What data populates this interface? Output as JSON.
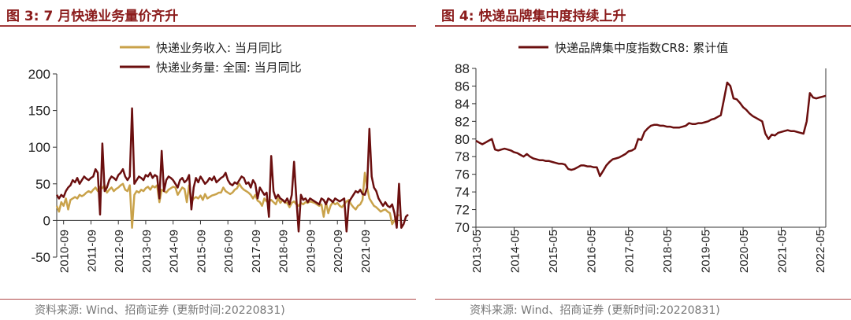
{
  "left": {
    "title": "图 3:  7 月快递业务量价齐升",
    "source": "资料来源: Wind、招商证券 (更新时间:20220831)",
    "chart_data": {
      "type": "line",
      "title": "图 3:  7 月快递业务量价齐升",
      "ylim": [
        -50,
        200
      ],
      "yticks": [
        -50,
        0,
        50,
        100,
        150,
        200
      ],
      "xticks": [
        "2010-09",
        "2011-09",
        "2012-09",
        "2013-09",
        "2014-09",
        "2015-09",
        "2016-09",
        "2017-09",
        "2018-09",
        "2019-09",
        "2020-09",
        "2021-09"
      ],
      "x_start": "2010-06",
      "legend_position": "top-center",
      "series": [
        {
          "name": "快递业务收入: 当月同比",
          "color": "#c9a24a",
          "values": [
            20,
            12,
            25,
            20,
            30,
            15,
            28,
            30,
            32,
            30,
            35,
            33,
            35,
            38,
            40,
            38,
            42,
            45,
            40,
            46,
            44,
            48,
            38,
            42,
            45,
            40,
            43,
            45,
            48,
            50,
            42,
            40,
            48,
            -10,
            35,
            40,
            38,
            42,
            40,
            44,
            46,
            42,
            47,
            45,
            48,
            25,
            42,
            40,
            38,
            42,
            44,
            46,
            45,
            35,
            40,
            45,
            43,
            25,
            48,
            25,
            30,
            32,
            30,
            34,
            28,
            36,
            30,
            32,
            34,
            35,
            36,
            38,
            38,
            45,
            40,
            38,
            36,
            38,
            42,
            44,
            50,
            45,
            42,
            40,
            38,
            35,
            30,
            35,
            27,
            25,
            20,
            30,
            26,
            26,
            28,
            25,
            22,
            30,
            24,
            28,
            24,
            24,
            18,
            24,
            26,
            22,
            20,
            24,
            22,
            25,
            24,
            26,
            25,
            24,
            22,
            20,
            22,
            5,
            25,
            10,
            20,
            25,
            22,
            24,
            20,
            18,
            22,
            26,
            28,
            22,
            18,
            15,
            20,
            22,
            28,
            65,
            45,
            30,
            25,
            20,
            18,
            15,
            12,
            14,
            15,
            12,
            10,
            -5,
            0,
            5,
            8
          ]
        },
        {
          "name": "快递业务量: 全国: 当月同比",
          "color": "#6b0f0f",
          "values": [
            35,
            30,
            35,
            32,
            40,
            45,
            48,
            55,
            52,
            58,
            50,
            55,
            60,
            57,
            55,
            58,
            60,
            70,
            65,
            8,
            105,
            40,
            45,
            55,
            60,
            58,
            55,
            62,
            65,
            70,
            60,
            55,
            60,
            153,
            50,
            55,
            60,
            58,
            55,
            62,
            60,
            65,
            58,
            62,
            60,
            30,
            95,
            40,
            55,
            60,
            58,
            55,
            50,
            45,
            55,
            58,
            52,
            55,
            62,
            15,
            45,
            58,
            52,
            60,
            55,
            50,
            53,
            58,
            55,
            60,
            52,
            55,
            58,
            60,
            65,
            55,
            50,
            48,
            52,
            50,
            55,
            60,
            58,
            50,
            52,
            45,
            55,
            50,
            30,
            45,
            40,
            35,
            38,
            5,
            88,
            40,
            30,
            35,
            30,
            28,
            25,
            30,
            22,
            35,
            80,
            30,
            -15,
            35,
            28,
            30,
            25,
            30,
            28,
            26,
            24,
            22,
            30,
            28,
            22,
            30,
            28,
            25,
            30,
            28,
            26,
            28,
            30,
            -15,
            25,
            30,
            35,
            40,
            38,
            42,
            36,
            35,
            45,
            125,
            60,
            45,
            40,
            30,
            25,
            20,
            25,
            20,
            18,
            22,
            10,
            -10,
            50,
            -10,
            -5,
            5,
            8
          ]
        }
      ]
    }
  },
  "right": {
    "title": "图 4:  快递品牌集中度持续上升",
    "source": "资料来源: Wind、招商证券 (更新时间:20220831)",
    "chart_data": {
      "type": "line",
      "title": "图 4:  快递品牌集中度持续上升",
      "ylim": [
        70,
        88
      ],
      "yticks": [
        70,
        72,
        74,
        76,
        78,
        80,
        82,
        84,
        86,
        88
      ],
      "xticks": [
        "2013-05",
        "2014-05",
        "2015-05",
        "2016-05",
        "2017-05",
        "2018-05",
        "2019-05",
        "2020-05",
        "2021-05",
        "2022-05"
      ],
      "x_start": "2013-05",
      "legend_position": "top-center",
      "series": [
        {
          "name": "快递品牌集中度指数CR8: 累计值",
          "color": "#6b0f0f",
          "values": [
            79.8,
            79.6,
            79.4,
            79.6,
            79.8,
            80.0,
            78.8,
            78.7,
            78.8,
            78.9,
            78.8,
            78.7,
            78.5,
            78.4,
            78.2,
            78.0,
            78.3,
            78.0,
            77.8,
            77.7,
            77.6,
            77.6,
            77.5,
            77.5,
            77.4,
            77.3,
            77.2,
            77.2,
            77.1,
            76.6,
            76.5,
            76.6,
            76.8,
            77.0,
            77.0,
            76.9,
            76.9,
            76.8,
            76.8,
            75.8,
            76.4,
            77.0,
            77.4,
            77.7,
            77.8,
            77.9,
            78.1,
            78.3,
            78.6,
            78.7,
            78.9,
            80.0,
            79.9,
            80.8,
            81.2,
            81.5,
            81.6,
            81.6,
            81.5,
            81.5,
            81.4,
            81.4,
            81.3,
            81.3,
            81.3,
            81.4,
            81.5,
            81.8,
            81.7,
            81.7,
            81.8,
            81.8,
            81.9,
            82.0,
            82.2,
            82.3,
            82.5,
            82.7,
            84.5,
            86.4,
            86.0,
            84.6,
            84.5,
            84.1,
            83.6,
            83.3,
            82.9,
            82.6,
            82.4,
            82.2,
            82.0,
            80.6,
            80.0,
            80.5,
            80.4,
            80.7,
            80.8,
            80.9,
            81.0,
            80.9,
            80.9,
            80.8,
            80.7,
            80.6,
            82.0,
            85.2,
            84.7,
            84.6,
            84.7,
            84.8,
            84.9
          ]
        }
      ]
    }
  }
}
